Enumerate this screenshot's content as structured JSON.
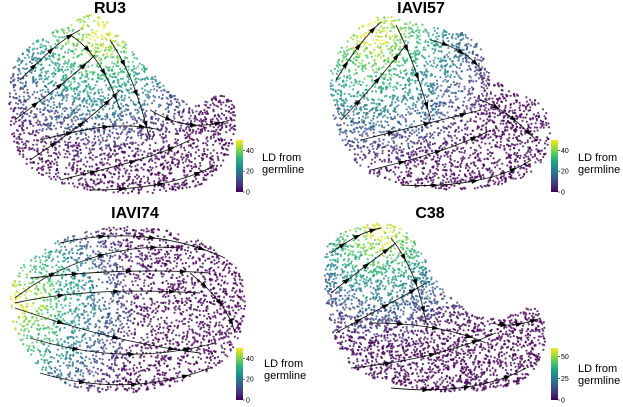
{
  "colormap": [
    "#440154",
    "#472d7b",
    "#3b528b",
    "#2c728e",
    "#21918c",
    "#28ae80",
    "#5ec962",
    "#addc30",
    "#fde725"
  ],
  "arrow_color": "#000000",
  "chart_data": [
    {
      "type": "scatter",
      "title": "RU3",
      "colorbar": {
        "label_line1": "LD from",
        "label_line2": "germline",
        "range": [
          0,
          50
        ],
        "ticks": [
          "0",
          "20",
          "40"
        ],
        "tick_values": [
          0,
          20,
          40
        ]
      },
      "grid": false,
      "legend": "right"
    },
    {
      "type": "scatter",
      "title": "IAVI57",
      "colorbar": {
        "label_line1": "LD from",
        "label_line2": "germline",
        "range": [
          0,
          50
        ],
        "ticks": [
          "0",
          "20",
          "40"
        ],
        "tick_values": [
          0,
          20,
          40
        ]
      },
      "grid": false,
      "legend": "right"
    },
    {
      "type": "scatter",
      "title": "IAVI74",
      "colorbar": {
        "label_line1": "LD from",
        "label_line2": "germline",
        "range": [
          0,
          50
        ],
        "ticks": [
          "0",
          "20",
          "40"
        ],
        "tick_values": [
          0,
          20,
          40
        ]
      },
      "grid": false,
      "legend": "right"
    },
    {
      "type": "scatter",
      "title": "C38",
      "colorbar": {
        "label_line1": "LD from",
        "label_line2": "germline",
        "range": [
          0,
          60
        ],
        "ticks": [
          "0",
          "25",
          "50"
        ],
        "tick_values": [
          0,
          25,
          50
        ]
      },
      "grid": false,
      "legend": "right"
    }
  ]
}
